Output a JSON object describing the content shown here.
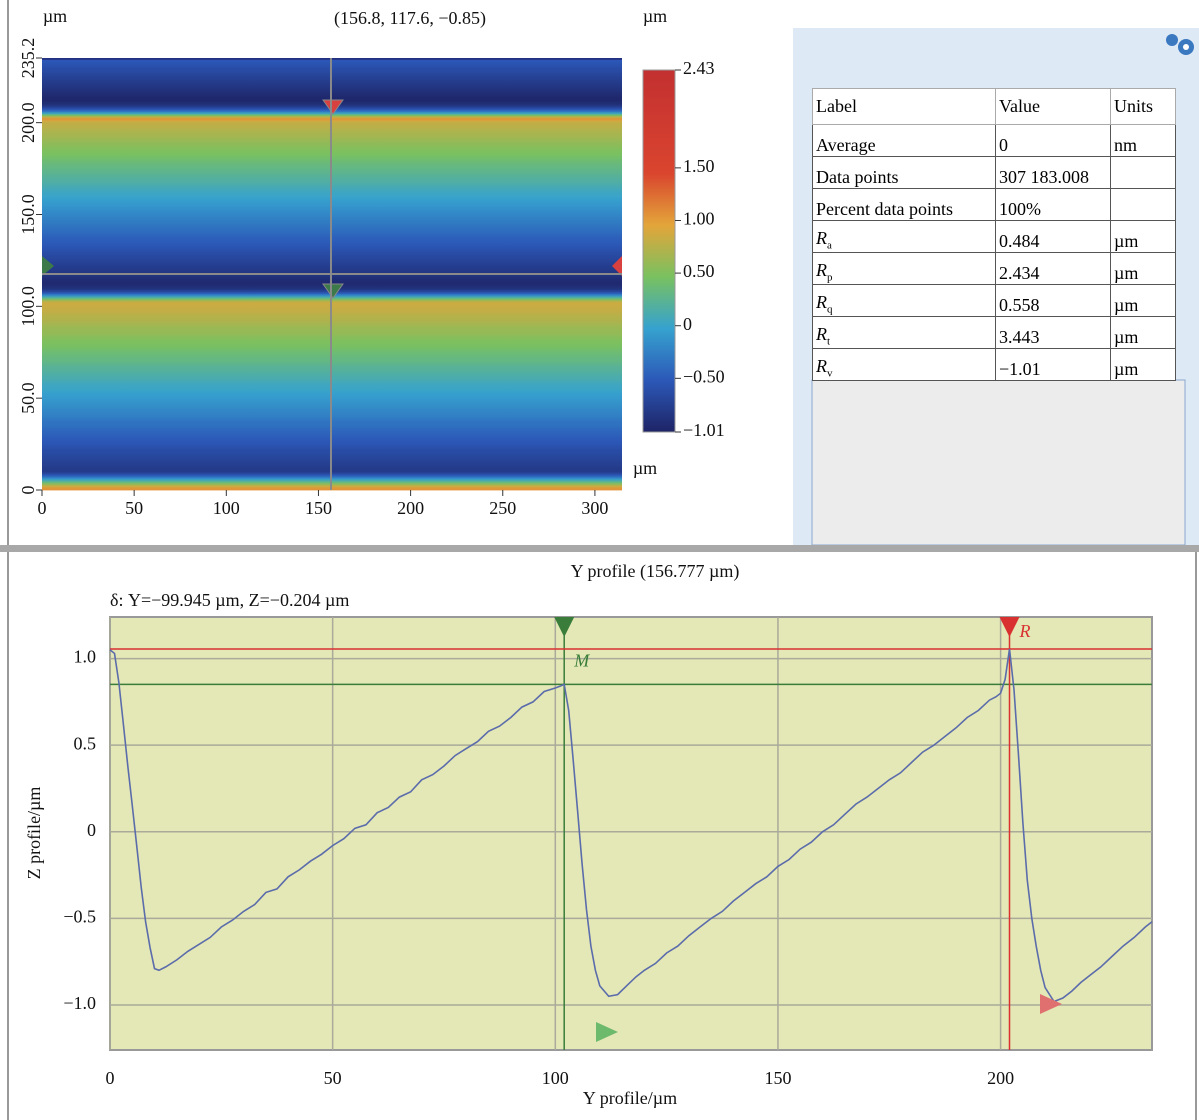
{
  "chart_data": [
    {
      "type": "heatmap",
      "title": "(156.8, 117.6, −0.85)",
      "x_unit": "µm",
      "y_unit": "µm",
      "colorbar_unit": "µm",
      "xlim": [
        0,
        314.7
      ],
      "xticks": [
        0,
        50,
        100,
        150,
        200,
        250,
        300
      ],
      "ylim": [
        0,
        235.2
      ],
      "yticks": [
        0,
        {
          "value": 50,
          "label": "50.0"
        },
        {
          "value": 100,
          "label": "100.0"
        },
        {
          "value": 150,
          "label": "150.0"
        },
        {
          "value": 200,
          "label": "200.0"
        },
        235.2
      ],
      "zlim": [
        -1.01,
        2.43
      ],
      "zticks": [
        2.43,
        {
          "value": 1.5,
          "label": "1.50"
        },
        {
          "value": 1,
          "label": "1.00"
        },
        {
          "value": 0.5,
          "label": "0.50"
        },
        0,
        {
          "value": -0.5,
          "label": "−0.50"
        },
        {
          "value": -1.01,
          "label": "−1.01"
        }
      ],
      "colors": [
        "#1e2466",
        "#2c58b8",
        "#36a2cf",
        "#79c160",
        "#e3a53a",
        "#d9452e",
        "#cf3a30",
        "#c23030"
      ],
      "crosshair": {
        "x": 156.8,
        "y": 117.6
      }
    },
    {
      "type": "line",
      "title": "Y profile (156.777 µm)",
      "xlabel": "Y profile/µm",
      "ylabel": "Z profile/µm",
      "annotation": "δ: Y=−99.945 µm, Z=−0.204 µm",
      "xlim": [
        0,
        234
      ],
      "xticks": [
        0,
        50,
        100,
        150,
        200
      ],
      "ylim": [
        -1.26,
        1.24
      ],
      "yticks": [
        {
          "value": -1,
          "label": "−1.0"
        },
        {
          "value": -0.5,
          "label": "−0.5"
        },
        0,
        {
          "value": 0.5,
          "label": "0.5"
        },
        {
          "value": 1,
          "label": "1.0"
        }
      ],
      "grid": true,
      "background": "#e4e7b6",
      "color": "#5b6cab",
      "x": [
        0,
        1,
        2,
        3,
        4,
        5,
        6,
        7,
        8,
        9,
        10,
        11,
        12.5,
        15,
        17.5,
        20,
        22.5,
        25,
        27.5,
        30,
        32.5,
        35,
        37.5,
        40,
        42.5,
        45,
        47.5,
        50,
        52.5,
        55,
        57.5,
        60,
        62.5,
        65,
        67.5,
        70,
        72.5,
        75,
        77.5,
        80,
        82.5,
        85,
        87.5,
        90,
        92.5,
        95,
        97.5,
        100,
        101,
        102,
        103,
        104,
        105,
        106,
        107,
        108,
        109,
        110,
        112,
        114,
        116,
        118,
        120,
        122.5,
        125,
        127.5,
        130,
        132.5,
        135,
        137.5,
        140,
        142.5,
        145,
        147.5,
        150,
        152.5,
        155,
        157.5,
        160,
        162.5,
        165,
        167.5,
        170,
        172.5,
        175,
        177.5,
        180,
        182.5,
        185,
        187.5,
        190,
        192.5,
        195,
        197.5,
        199,
        200,
        201,
        202,
        203,
        204,
        205,
        206,
        207,
        208,
        209,
        210,
        212,
        214,
        216,
        218,
        220,
        222.5,
        225,
        227.5,
        230,
        232.5,
        234
      ],
      "values": [
        1.05,
        1.03,
        0.86,
        0.62,
        0.38,
        0.15,
        -0.08,
        -0.32,
        -0.52,
        -0.67,
        -0.79,
        -0.8,
        -0.78,
        -0.74,
        -0.69,
        -0.65,
        -0.61,
        -0.55,
        -0.51,
        -0.46,
        -0.42,
        -0.35,
        -0.33,
        -0.26,
        -0.22,
        -0.17,
        -0.13,
        -0.08,
        -0.04,
        0.02,
        0.04,
        0.11,
        0.14,
        0.2,
        0.23,
        0.3,
        0.33,
        0.38,
        0.44,
        0.48,
        0.52,
        0.58,
        0.61,
        0.66,
        0.72,
        0.75,
        0.81,
        0.83,
        0.84,
        0.851,
        0.7,
        0.42,
        0.12,
        -0.18,
        -0.45,
        -0.66,
        -0.8,
        -0.89,
        -0.95,
        -0.94,
        -0.89,
        -0.84,
        -0.8,
        -0.76,
        -0.7,
        -0.66,
        -0.6,
        -0.55,
        -0.5,
        -0.46,
        -0.4,
        -0.35,
        -0.3,
        -0.26,
        -0.2,
        -0.16,
        -0.1,
        -0.06,
        0,
        0.04,
        0.1,
        0.16,
        0.2,
        0.25,
        0.3,
        0.34,
        0.4,
        0.46,
        0.5,
        0.55,
        0.6,
        0.66,
        0.7,
        0.76,
        0.78,
        0.8,
        0.88,
        1.055,
        0.82,
        0.45,
        0.05,
        -0.28,
        -0.5,
        -0.66,
        -0.8,
        -0.9,
        -0.98,
        -0.96,
        -0.92,
        -0.87,
        -0.83,
        -0.78,
        -0.72,
        -0.66,
        -0.61,
        -0.55,
        -0.52
      ],
      "markers": [
        {
          "label": "M",
          "x": 102,
          "y": 0.851,
          "color": "#3a7d3a"
        },
        {
          "label": "R",
          "x": 202,
          "y": 1.055,
          "color": "#d93030"
        }
      ]
    }
  ],
  "table": {
    "header": [
      "Label",
      "Value",
      "Units"
    ],
    "rows": [
      {
        "label": "Average",
        "value": "0",
        "units": "nm"
      },
      {
        "label": "Data points",
        "value": "307 183.008",
        "units": null
      },
      {
        "label": "Percent data points",
        "value": "100%",
        "units": null
      },
      {
        "label": "R",
        "sub": "a",
        "value": "0.484",
        "units": "µm"
      },
      {
        "label": "R",
        "sub": "p",
        "value": "2.434",
        "units": "µm"
      },
      {
        "label": "R",
        "sub": "q",
        "value": "0.558",
        "units": "µm"
      },
      {
        "label": "R",
        "sub": "t",
        "value": "3.443",
        "units": "µm"
      },
      {
        "label": "R",
        "sub": "v",
        "value": "−1.01",
        "units": "µm"
      }
    ]
  }
}
